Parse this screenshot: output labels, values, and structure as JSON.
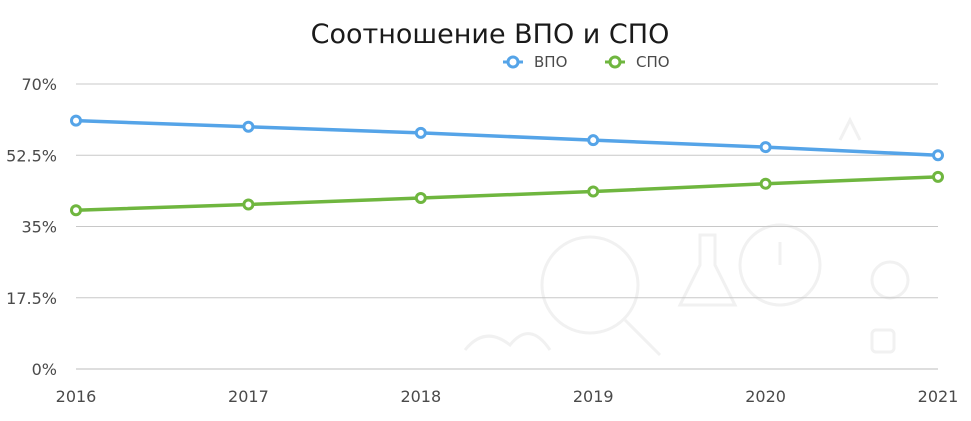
{
  "chart_data": {
    "type": "line",
    "title": "Соотношение ВПО и СПО",
    "categories": [
      "2016",
      "2017",
      "2018",
      "2019",
      "2020",
      "2021"
    ],
    "series": [
      {
        "name": "ВПО",
        "color": "#55a4e8",
        "values": [
          61,
          59.5,
          58,
          56.2,
          54.5,
          52.5
        ]
      },
      {
        "name": "СПО",
        "color": "#6fb63f",
        "values": [
          39,
          40.4,
          42,
          43.6,
          45.5,
          47.2
        ]
      }
    ],
    "yticks": [
      "70%",
      "52.5%",
      "35%",
      "17.5%",
      "0%"
    ],
    "ylim": [
      0,
      70
    ],
    "y_unit": "%",
    "grid": true,
    "legend_position": "top-right"
  }
}
